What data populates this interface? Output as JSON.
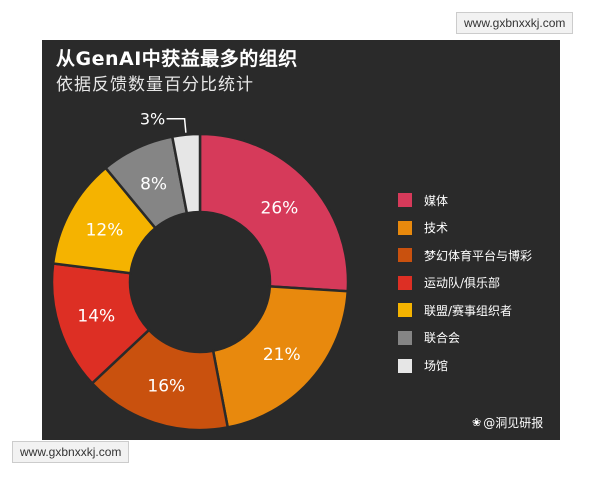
{
  "watermark": "www.gxbnxxkj.com",
  "chart_data": {
    "type": "pie",
    "title": "从GenAI中获益最多的组织",
    "subtitle": "依据反馈数量百分比统计",
    "categories": [
      "媒体",
      "技术",
      "梦幻体育平台与博彩",
      "运动队/俱乐部",
      "联盟/赛事组织者",
      "联合会",
      "场馆"
    ],
    "values": [
      26,
      21,
      16,
      14,
      12,
      8,
      3
    ],
    "labels": [
      "26%",
      "21%",
      "16%",
      "14%",
      "12%",
      "8%",
      "3%"
    ],
    "colors": [
      "#d63a5a",
      "#e8890d",
      "#c9510e",
      "#dd2f24",
      "#f5b300",
      "#858585",
      "#e6e6e6"
    ],
    "legend_position": "right",
    "inner_label_colors": [
      "#ffffff",
      "#ffffff",
      "#ffffff",
      "#ffffff",
      "#ffffff",
      "#ffffff",
      "#ffffff"
    ]
  },
  "credit": {
    "icon": "weibo-icon",
    "text": "@洞见研报"
  }
}
